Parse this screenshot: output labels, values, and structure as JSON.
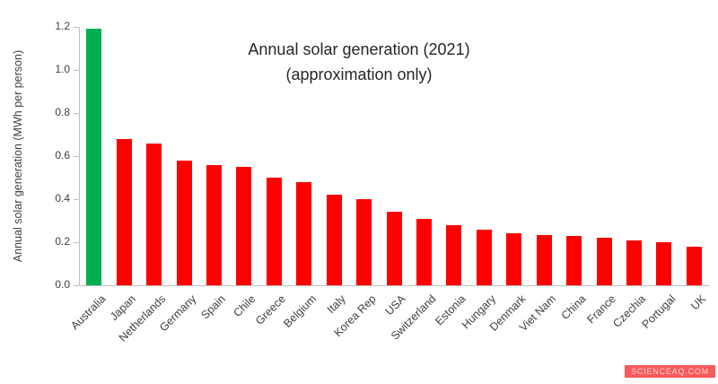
{
  "watermark": "SCIENCEAQ.COM",
  "chart_data": {
    "type": "bar",
    "title_line1": "Annual solar generation (2021)",
    "title_line2": "(approximation only)",
    "ylabel": "Annual solar generation (MWh per person)",
    "xlabel": "",
    "ylim": [
      0,
      1.2
    ],
    "yticks": [
      0.0,
      0.2,
      0.4,
      0.6,
      0.8,
      1.0,
      1.2
    ],
    "grid": false,
    "legend": "none",
    "categories": [
      "Australia",
      "Japan",
      "Netherlands",
      "Germany",
      "Spain",
      "Chile",
      "Greece",
      "Belgium",
      "Italy",
      "Korea Rep",
      "USA",
      "Switzerland",
      "Estonia",
      "Hungary",
      "Denmark",
      "Viet Nam",
      "China",
      "France",
      "Czechia",
      "Portugal",
      "UK"
    ],
    "values": [
      1.19,
      0.68,
      0.66,
      0.58,
      0.56,
      0.55,
      0.5,
      0.48,
      0.42,
      0.4,
      0.34,
      0.31,
      0.28,
      0.26,
      0.24,
      0.235,
      0.23,
      0.22,
      0.21,
      0.2,
      0.18
    ],
    "bar_color_default": "#ff0000",
    "bar_color_highlight": "#00b050",
    "highlight_index": 0
  }
}
